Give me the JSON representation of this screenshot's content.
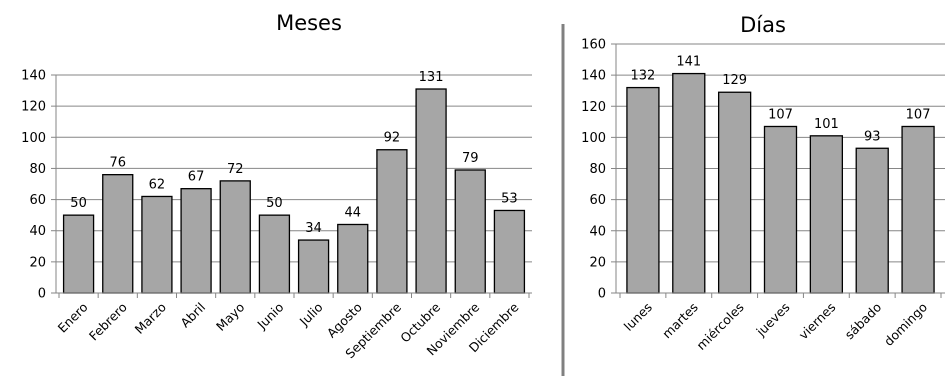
{
  "chart_data": [
    {
      "type": "bar",
      "title": "Meses",
      "categories": [
        "Enero",
        "Febrero",
        "Marzo",
        "Abril",
        "Mayo",
        "Junio",
        "Julio",
        "Agosto",
        "Septiembre",
        "Octubre",
        "Noviembre",
        "Diciembre"
      ],
      "values": [
        50,
        76,
        62,
        67,
        72,
        50,
        34,
        44,
        92,
        131,
        79,
        53
      ],
      "ylim": [
        0,
        140
      ],
      "yticks": [
        0,
        20,
        40,
        60,
        80,
        100,
        120,
        140
      ],
      "grid": true,
      "bar_color": "#a6a6a6",
      "data_labels": true
    },
    {
      "type": "bar",
      "title": "Días",
      "categories": [
        "lunes",
        "martes",
        "miércoles",
        "jueves",
        "viernes",
        "sábado",
        "domingo"
      ],
      "values": [
        132,
        141,
        129,
        107,
        101,
        93,
        107
      ],
      "ylim": [
        0,
        160
      ],
      "yticks": [
        0,
        20,
        40,
        60,
        80,
        100,
        120,
        140,
        160
      ],
      "grid": true,
      "bar_color": "#a6a6a6",
      "data_labels": true
    }
  ],
  "divider_color": "#808080"
}
